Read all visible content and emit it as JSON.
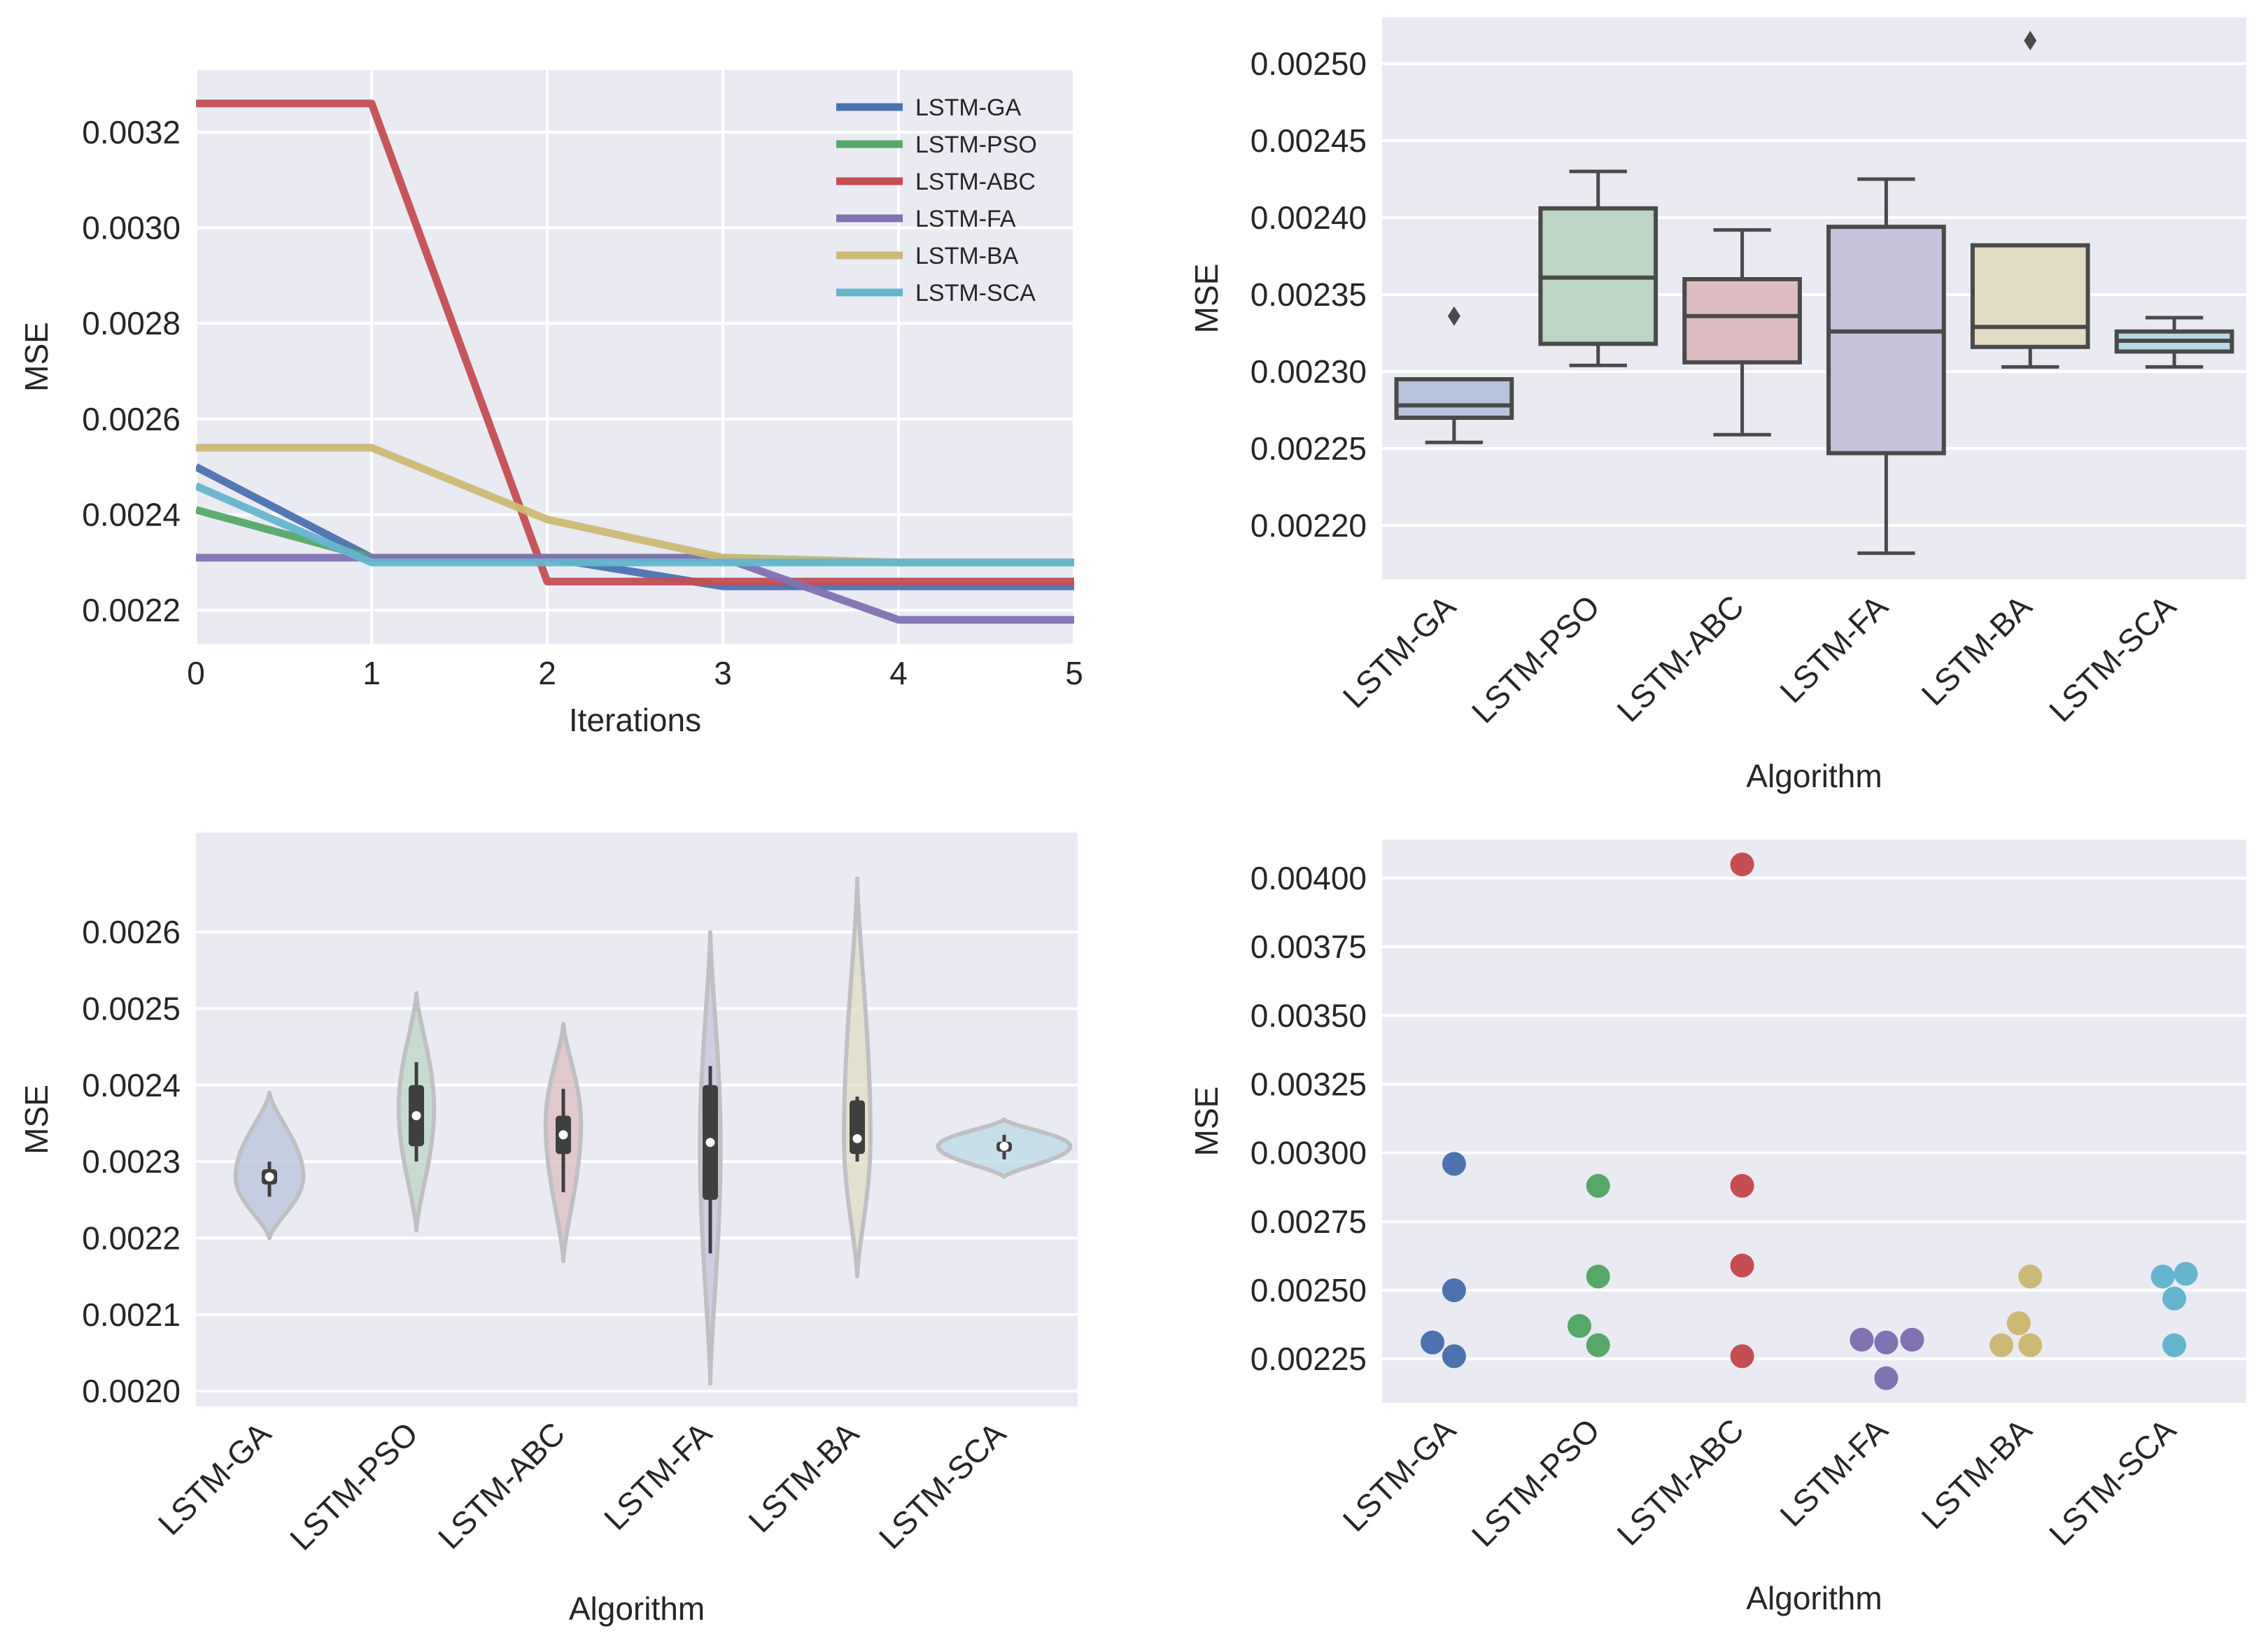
{
  "colors": {
    "background": "#eaeaf2",
    "grid": "#ffffff",
    "box_edge": "#4a4a4a",
    "series": [
      "#4c72b0",
      "#55a868",
      "#c44e52",
      "#8172b2",
      "#ccb974",
      "#64b5cd"
    ],
    "pastel": [
      "#b8c3dc",
      "#bcd5c4",
      "#dcbcc0",
      "#c8c2dd",
      "#e2dcc4",
      "#b9d9e6"
    ]
  },
  "chart_data": [
    {
      "type": "line",
      "title": "",
      "xlabel": "Iterations",
      "ylabel": "MSE",
      "x": [
        0,
        1,
        2,
        3,
        4,
        5
      ],
      "x_ticks": [
        "0",
        "1",
        "2",
        "3",
        "4",
        "5"
      ],
      "xlim": [
        0,
        5
      ],
      "ylim": [
        0.00213,
        0.00333
      ],
      "y_ticks": [
        0.0022,
        0.0024,
        0.0026,
        0.0028,
        0.003,
        0.0032
      ],
      "y_tick_labels": [
        "0.0022",
        "0.0024",
        "0.0026",
        "0.0028",
        "0.0030",
        "0.0032"
      ],
      "legend_position": "top-right",
      "series": [
        {
          "name": "LSTM-GA",
          "values": [
            0.0025,
            0.00231,
            0.00231,
            0.00225,
            0.00225,
            0.00225
          ]
        },
        {
          "name": "LSTM-PSO",
          "values": [
            0.00241,
            0.00231,
            0.00231,
            0.00231,
            0.0023,
            0.0023
          ]
        },
        {
          "name": "LSTM-ABC",
          "values": [
            0.00326,
            0.00326,
            0.00226,
            0.00226,
            0.00226,
            0.00226
          ]
        },
        {
          "name": "LSTM-FA",
          "values": [
            0.00231,
            0.00231,
            0.00231,
            0.00231,
            0.00218,
            0.00218
          ]
        },
        {
          "name": "LSTM-BA",
          "values": [
            0.00254,
            0.00254,
            0.00239,
            0.00231,
            0.0023,
            0.0023
          ]
        },
        {
          "name": "LSTM-SCA",
          "values": [
            0.00246,
            0.0023,
            0.0023,
            0.0023,
            0.0023,
            0.0023
          ]
        }
      ]
    },
    {
      "type": "box",
      "title": "",
      "xlabel": "Algorithm",
      "ylabel": "MSE",
      "categories": [
        "LSTM-GA",
        "LSTM-PSO",
        "LSTM-ABC",
        "LSTM-FA",
        "LSTM-BA",
        "LSTM-SCA"
      ],
      "ylim": [
        0.002165,
        0.00253
      ],
      "y_ticks": [
        0.0022,
        0.00225,
        0.0023,
        0.00235,
        0.0024,
        0.00245,
        0.0025
      ],
      "y_tick_labels": [
        "0.00220",
        "0.00225",
        "0.00230",
        "0.00235",
        "0.00240",
        "0.00245",
        "0.00250"
      ],
      "boxes": [
        {
          "whisker_low": 0.002254,
          "q1": 0.00227,
          "median": 0.002278,
          "q3": 0.002295,
          "whisker_high": 0.002295,
          "outliers": [
            0.002336
          ]
        },
        {
          "whisker_low": 0.002304,
          "q1": 0.002318,
          "median": 0.002361,
          "q3": 0.002406,
          "whisker_high": 0.00243,
          "outliers": []
        },
        {
          "whisker_low": 0.002259,
          "q1": 0.002306,
          "median": 0.002336,
          "q3": 0.00236,
          "whisker_high": 0.002392,
          "outliers": []
        },
        {
          "whisker_low": 0.002182,
          "q1": 0.002247,
          "median": 0.002326,
          "q3": 0.002394,
          "whisker_high": 0.002425,
          "outliers": []
        },
        {
          "whisker_low": 0.002303,
          "q1": 0.002316,
          "median": 0.002329,
          "q3": 0.002382,
          "whisker_high": 0.002382,
          "outliers": [
            0.002515
          ]
        },
        {
          "whisker_low": 0.002303,
          "q1": 0.002313,
          "median": 0.00232,
          "q3": 0.002326,
          "whisker_high": 0.002335,
          "outliers": []
        }
      ]
    },
    {
      "type": "violin",
      "title": "",
      "xlabel": "Algorithm",
      "ylabel": "MSE",
      "categories": [
        "LSTM-GA",
        "LSTM-PSO",
        "LSTM-ABC",
        "LSTM-FA",
        "LSTM-BA",
        "LSTM-SCA"
      ],
      "ylim": [
        0.00198,
        0.00273
      ],
      "y_ticks": [
        0.002,
        0.0021,
        0.0022,
        0.0023,
        0.0024,
        0.0025,
        0.0026
      ],
      "y_tick_labels": [
        "0.0020",
        "0.0021",
        "0.0022",
        "0.0023",
        "0.0024",
        "0.0025",
        "0.0026"
      ],
      "violins": [
        {
          "kde_min": 0.0022,
          "kde_max": 0.00239,
          "kde_peak": 0.00228,
          "max_width_fraction": 0.23,
          "q1": 0.00227,
          "median": 0.00228,
          "q3": 0.00229,
          "whisker_low": 0.002254,
          "whisker_high": 0.0023
        },
        {
          "kde_min": 0.00221,
          "kde_max": 0.00252,
          "kde_peak": 0.00237,
          "max_width_fraction": 0.12,
          "q1": 0.00232,
          "median": 0.00236,
          "q3": 0.0024,
          "whisker_low": 0.0023,
          "whisker_high": 0.00243
        },
        {
          "kde_min": 0.00217,
          "kde_max": 0.00248,
          "kde_peak": 0.00235,
          "max_width_fraction": 0.12,
          "q1": 0.00231,
          "median": 0.002335,
          "q3": 0.00236,
          "whisker_low": 0.00226,
          "whisker_high": 0.002395
        },
        {
          "kde_min": 0.00201,
          "kde_max": 0.0026,
          "kde_peak": 0.00232,
          "max_width_fraction": 0.07,
          "q1": 0.00225,
          "median": 0.002325,
          "q3": 0.0024,
          "whisker_low": 0.00218,
          "whisker_high": 0.002425
        },
        {
          "kde_min": 0.00215,
          "kde_max": 0.00267,
          "kde_peak": 0.00233,
          "max_width_fraction": 0.09,
          "q1": 0.00231,
          "median": 0.00233,
          "q3": 0.00238,
          "whisker_low": 0.0023,
          "whisker_high": 0.002385
        },
        {
          "kde_min": 0.00228,
          "kde_max": 0.002355,
          "kde_peak": 0.00232,
          "max_width_fraction": 0.45,
          "q1": 0.002313,
          "median": 0.00232,
          "q3": 0.002326,
          "whisker_low": 0.002303,
          "whisker_high": 0.002335
        }
      ]
    },
    {
      "type": "scatter",
      "title": "",
      "xlabel": "Algorithm",
      "ylabel": "MSE",
      "categories": [
        "LSTM-GA",
        "LSTM-PSO",
        "LSTM-ABC",
        "LSTM-FA",
        "LSTM-BA",
        "LSTM-SCA"
      ],
      "ylim": [
        0.00209,
        0.00414
      ],
      "y_ticks": [
        0.00225,
        0.0025,
        0.00275,
        0.003,
        0.00325,
        0.0035,
        0.00375,
        0.004
      ],
      "y_tick_labels": [
        "0.00225",
        "0.00250",
        "0.00275",
        "0.00300",
        "0.00325",
        "0.00350",
        "0.00375",
        "0.00400"
      ],
      "points": [
        {
          "category": "LSTM-GA",
          "jitter": 0,
          "y": 0.00296
        },
        {
          "category": "LSTM-GA",
          "jitter": 0,
          "y": 0.0025
        },
        {
          "category": "LSTM-GA",
          "jitter": -0.15,
          "y": 0.00231
        },
        {
          "category": "LSTM-GA",
          "jitter": 0,
          "y": 0.00226
        },
        {
          "category": "LSTM-PSO",
          "jitter": 0,
          "y": 0.00288
        },
        {
          "category": "LSTM-PSO",
          "jitter": 0,
          "y": 0.00255
        },
        {
          "category": "LSTM-PSO",
          "jitter": -0.13,
          "y": 0.00237
        },
        {
          "category": "LSTM-PSO",
          "jitter": 0,
          "y": 0.0023
        },
        {
          "category": "LSTM-ABC",
          "jitter": 0,
          "y": 0.00405
        },
        {
          "category": "LSTM-ABC",
          "jitter": 0,
          "y": 0.00288
        },
        {
          "category": "LSTM-ABC",
          "jitter": 0,
          "y": 0.00259
        },
        {
          "category": "LSTM-ABC",
          "jitter": 0,
          "y": 0.00226
        },
        {
          "category": "LSTM-FA",
          "jitter": -0.17,
          "y": 0.00232
        },
        {
          "category": "LSTM-FA",
          "jitter": 0,
          "y": 0.00231
        },
        {
          "category": "LSTM-FA",
          "jitter": 0.18,
          "y": 0.00232
        },
        {
          "category": "LSTM-FA",
          "jitter": 0,
          "y": 0.00218
        },
        {
          "category": "LSTM-BA",
          "jitter": 0,
          "y": 0.00255
        },
        {
          "category": "LSTM-BA",
          "jitter": -0.08,
          "y": 0.00238
        },
        {
          "category": "LSTM-BA",
          "jitter": -0.2,
          "y": 0.0023
        },
        {
          "category": "LSTM-BA",
          "jitter": 0,
          "y": 0.0023
        },
        {
          "category": "LSTM-SCA",
          "jitter": -0.08,
          "y": 0.00255
        },
        {
          "category": "LSTM-SCA",
          "jitter": 0.08,
          "y": 0.00256
        },
        {
          "category": "LSTM-SCA",
          "jitter": 0,
          "y": 0.00247
        },
        {
          "category": "LSTM-SCA",
          "jitter": 0,
          "y": 0.0023
        }
      ]
    }
  ]
}
